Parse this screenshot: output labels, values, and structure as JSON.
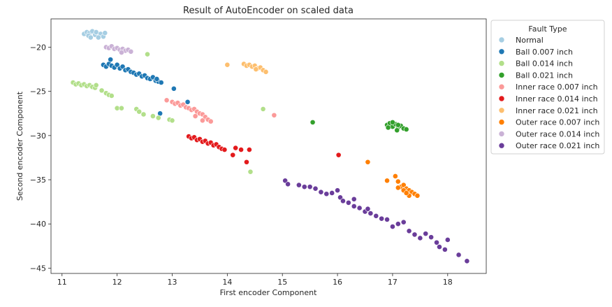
{
  "chart_data": {
    "type": "scatter",
    "title": "Result of AutoEncoder on scaled data",
    "xlabel": "First encoder Component",
    "ylabel": "Second encoder Component",
    "xlim": [
      10.8,
      18.7
    ],
    "ylim": [
      -45.6,
      -16.8
    ],
    "xticks": [
      11,
      12,
      13,
      14,
      15,
      16,
      17,
      18
    ],
    "yticks": [
      -20,
      -25,
      -30,
      -35,
      -40,
      -45
    ],
    "grid": false,
    "legend": {
      "title": "Fault Type",
      "placement": "outside-right"
    },
    "series": [
      {
        "name": "Normal",
        "color": "#a6cee3",
        "points": [
          [
            11.4,
            -18.5
          ],
          [
            11.45,
            -18.3
          ],
          [
            11.5,
            -18.4
          ],
          [
            11.55,
            -18.2
          ],
          [
            11.6,
            -18.6
          ],
          [
            11.48,
            -18.7
          ],
          [
            11.62,
            -18.3
          ],
          [
            11.7,
            -18.5
          ],
          [
            11.75,
            -18.8
          ],
          [
            11.78,
            -18.4
          ],
          [
            11.52,
            -18.9
          ],
          [
            11.66,
            -18.9
          ]
        ]
      },
      {
        "name": "Ball 0.007 inch",
        "color": "#1f78b4",
        "points": [
          [
            11.75,
            -22.0
          ],
          [
            11.8,
            -22.2
          ],
          [
            11.85,
            -21.9
          ],
          [
            11.9,
            -22.1
          ],
          [
            11.95,
            -22.3
          ],
          [
            12.0,
            -22.0
          ],
          [
            12.05,
            -22.4
          ],
          [
            12.1,
            -22.2
          ],
          [
            12.15,
            -22.6
          ],
          [
            12.2,
            -22.5
          ],
          [
            12.25,
            -22.8
          ],
          [
            12.3,
            -22.9
          ],
          [
            12.35,
            -23.1
          ],
          [
            12.4,
            -23.0
          ],
          [
            12.45,
            -23.3
          ],
          [
            12.5,
            -23.2
          ],
          [
            12.55,
            -23.5
          ],
          [
            12.6,
            -23.6
          ],
          [
            12.65,
            -23.4
          ],
          [
            12.7,
            -23.8
          ],
          [
            12.75,
            -23.9
          ],
          [
            12.8,
            -24.0
          ],
          [
            12.72,
            -23.6
          ],
          [
            11.88,
            -21.4
          ],
          [
            13.03,
            -24.7
          ],
          [
            12.78,
            -27.5
          ],
          [
            13.28,
            -26.2
          ]
        ]
      },
      {
        "name": "Ball 0.014 inch",
        "color": "#b2df8a",
        "points": [
          [
            11.2,
            -24.0
          ],
          [
            11.25,
            -24.2
          ],
          [
            11.3,
            -24.1
          ],
          [
            11.35,
            -24.3
          ],
          [
            11.4,
            -24.2
          ],
          [
            11.45,
            -24.4
          ],
          [
            11.5,
            -24.3
          ],
          [
            11.55,
            -24.5
          ],
          [
            11.6,
            -24.6
          ],
          [
            11.62,
            -24.3
          ],
          [
            11.72,
            -24.9
          ],
          [
            11.8,
            -25.2
          ],
          [
            11.85,
            -25.4
          ],
          [
            11.9,
            -25.5
          ],
          [
            12.0,
            -26.9
          ],
          [
            12.08,
            -26.9
          ],
          [
            12.35,
            -27.0
          ],
          [
            12.4,
            -27.3
          ],
          [
            12.48,
            -27.6
          ],
          [
            12.65,
            -27.8
          ],
          [
            12.75,
            -28.0
          ],
          [
            12.95,
            -28.2
          ],
          [
            13.0,
            -28.3
          ],
          [
            12.55,
            -20.8
          ],
          [
            14.65,
            -27.0
          ],
          [
            14.42,
            -34.1
          ]
        ]
      },
      {
        "name": "Ball 0.021 inch",
        "color": "#33a02c",
        "points": [
          [
            16.9,
            -28.8
          ],
          [
            16.95,
            -28.6
          ],
          [
            17.0,
            -29.0
          ],
          [
            17.05,
            -28.7
          ],
          [
            17.1,
            -29.1
          ],
          [
            17.15,
            -28.9
          ],
          [
            17.2,
            -29.2
          ],
          [
            17.25,
            -29.3
          ],
          [
            17.0,
            -28.5
          ],
          [
            17.1,
            -28.8
          ],
          [
            17.08,
            -29.4
          ],
          [
            16.92,
            -29.1
          ],
          [
            15.55,
            -28.5
          ]
        ]
      },
      {
        "name": "Inner race 0.007 inch",
        "color": "#fb9a99",
        "points": [
          [
            12.9,
            -26.0
          ],
          [
            13.0,
            -26.2
          ],
          [
            13.05,
            -26.4
          ],
          [
            13.1,
            -26.3
          ],
          [
            13.15,
            -26.6
          ],
          [
            13.2,
            -26.5
          ],
          [
            13.25,
            -26.8
          ],
          [
            13.3,
            -26.9
          ],
          [
            13.35,
            -27.1
          ],
          [
            13.4,
            -27.0
          ],
          [
            13.45,
            -27.3
          ],
          [
            13.5,
            -27.5
          ],
          [
            13.55,
            -27.6
          ],
          [
            13.6,
            -27.9
          ],
          [
            13.65,
            -28.2
          ],
          [
            13.7,
            -28.4
          ],
          [
            13.55,
            -28.3
          ],
          [
            13.42,
            -27.8
          ],
          [
            14.85,
            -27.7
          ]
        ]
      },
      {
        "name": "Inner race 0.014 inch",
        "color": "#e31a1c",
        "points": [
          [
            13.3,
            -30.1
          ],
          [
            13.35,
            -30.3
          ],
          [
            13.4,
            -30.2
          ],
          [
            13.45,
            -30.5
          ],
          [
            13.5,
            -30.4
          ],
          [
            13.55,
            -30.7
          ],
          [
            13.6,
            -30.6
          ],
          [
            13.65,
            -30.9
          ],
          [
            13.7,
            -30.8
          ],
          [
            13.75,
            -31.1
          ],
          [
            13.8,
            -31.0
          ],
          [
            13.85,
            -31.3
          ],
          [
            13.9,
            -31.5
          ],
          [
            13.95,
            -31.6
          ],
          [
            14.1,
            -32.2
          ],
          [
            14.15,
            -31.4
          ],
          [
            14.25,
            -31.6
          ],
          [
            14.4,
            -31.6
          ],
          [
            14.35,
            -33.0
          ],
          [
            16.02,
            -32.2
          ]
        ]
      },
      {
        "name": "Inner race 0.021 inch",
        "color": "#fdbf6f",
        "points": [
          [
            14.0,
            -22.0
          ],
          [
            14.3,
            -21.9
          ],
          [
            14.35,
            -22.1
          ],
          [
            14.4,
            -22.0
          ],
          [
            14.45,
            -22.2
          ],
          [
            14.5,
            -22.1
          ],
          [
            14.55,
            -22.4
          ],
          [
            14.6,
            -22.3
          ],
          [
            14.65,
            -22.6
          ],
          [
            14.7,
            -22.8
          ],
          [
            14.52,
            -22.5
          ]
        ]
      },
      {
        "name": "Outer race 0.007 inch",
        "color": "#ff7f00",
        "points": [
          [
            16.9,
            -35.1
          ],
          [
            17.05,
            -34.6
          ],
          [
            17.1,
            -35.2
          ],
          [
            17.15,
            -35.8
          ],
          [
            17.2,
            -35.6
          ],
          [
            17.25,
            -36.0
          ],
          [
            17.3,
            -36.2
          ],
          [
            17.35,
            -36.4
          ],
          [
            17.4,
            -36.6
          ],
          [
            17.45,
            -36.8
          ],
          [
            17.2,
            -36.2
          ],
          [
            17.3,
            -36.8
          ],
          [
            17.1,
            -35.9
          ],
          [
            17.25,
            -36.5
          ],
          [
            16.55,
            -33.0
          ]
        ]
      },
      {
        "name": "Outer race 0.014 inch",
        "color": "#cab2d6",
        "points": [
          [
            11.8,
            -20.0
          ],
          [
            11.85,
            -20.1
          ],
          [
            11.9,
            -19.9
          ],
          [
            11.95,
            -20.2
          ],
          [
            12.0,
            -20.1
          ],
          [
            12.05,
            -20.3
          ],
          [
            12.1,
            -20.2
          ],
          [
            12.15,
            -20.4
          ],
          [
            12.2,
            -20.3
          ],
          [
            12.25,
            -20.5
          ],
          [
            12.08,
            -20.6
          ]
        ]
      },
      {
        "name": "Outer race 0.021 inch",
        "color": "#6a3d9a",
        "points": [
          [
            15.05,
            -35.1
          ],
          [
            15.1,
            -35.5
          ],
          [
            15.3,
            -35.6
          ],
          [
            15.4,
            -35.8
          ],
          [
            15.5,
            -35.8
          ],
          [
            15.6,
            -36.0
          ],
          [
            15.7,
            -36.4
          ],
          [
            15.8,
            -36.6
          ],
          [
            15.9,
            -36.5
          ],
          [
            16.0,
            -36.2
          ],
          [
            16.05,
            -37.0
          ],
          [
            16.1,
            -37.4
          ],
          [
            16.2,
            -37.6
          ],
          [
            16.3,
            -38.0
          ],
          [
            16.4,
            -38.2
          ],
          [
            16.5,
            -38.6
          ],
          [
            16.6,
            -38.8
          ],
          [
            16.7,
            -39.1
          ],
          [
            16.8,
            -39.4
          ],
          [
            16.9,
            -39.5
          ],
          [
            17.0,
            -40.3
          ],
          [
            17.1,
            -40.0
          ],
          [
            17.2,
            -39.8
          ],
          [
            17.3,
            -40.8
          ],
          [
            17.4,
            -41.2
          ],
          [
            17.5,
            -41.6
          ],
          [
            17.6,
            -41.1
          ],
          [
            17.7,
            -41.5
          ],
          [
            17.8,
            -42.1
          ],
          [
            17.85,
            -42.6
          ],
          [
            17.95,
            -42.9
          ],
          [
            18.0,
            -41.8
          ],
          [
            18.2,
            -43.5
          ],
          [
            18.35,
            -44.2
          ],
          [
            16.3,
            -37.2
          ],
          [
            16.55,
            -38.3
          ]
        ]
      }
    ]
  }
}
